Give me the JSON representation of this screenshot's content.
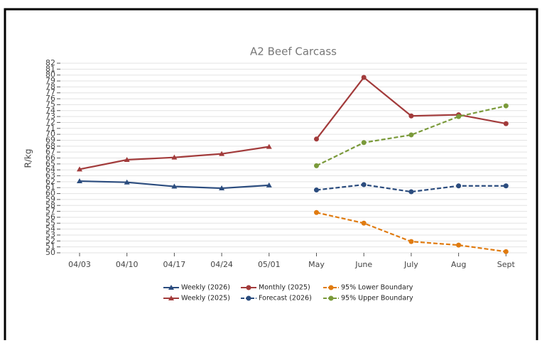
{
  "chart_data": {
    "type": "line",
    "title": "A2 Beef Carcass",
    "y_label": "R/kg",
    "categories": [
      "04/03",
      "04/10",
      "04/17",
      "04/24",
      "05/01",
      "May",
      "June",
      "July",
      "Aug",
      "Sept"
    ],
    "ylim": [
      50,
      82
    ],
    "yticks": [
      50,
      51,
      52,
      53,
      54,
      55,
      56,
      57,
      58,
      59,
      60,
      61,
      62,
      63,
      64,
      65,
      66,
      67,
      68,
      69,
      70,
      71,
      72,
      73,
      74,
      75,
      76,
      77,
      78,
      79,
      80,
      81,
      82
    ],
    "grid": true,
    "series": [
      {
        "name": "Weekly (2026)",
        "color": "#2b4c7e",
        "marker": "triangle",
        "dashed": false,
        "values": [
          62.1,
          61.9,
          61.2,
          60.9,
          61.4,
          null,
          null,
          null,
          null,
          null
        ]
      },
      {
        "name": "Weekly (2025)",
        "color": "#a23b3b",
        "marker": "triangle",
        "dashed": false,
        "values": [
          64.1,
          65.7,
          66.1,
          66.7,
          67.9,
          null,
          null,
          null,
          null,
          null
        ]
      },
      {
        "name": "Monthly (2025)",
        "color": "#a23b3b",
        "marker": "circle",
        "dashed": false,
        "values": [
          null,
          null,
          null,
          null,
          null,
          69.2,
          79.6,
          73.1,
          73.3,
          71.8
        ]
      },
      {
        "name": "Forecast (2026)",
        "color": "#2b4c7e",
        "marker": "circle",
        "dashed": true,
        "values": [
          null,
          null,
          null,
          null,
          null,
          60.6,
          61.5,
          60.3,
          61.3,
          61.3
        ]
      },
      {
        "name": "95% Lower Boundary",
        "color": "#e07b10",
        "marker": "circle",
        "dashed": true,
        "values": [
          null,
          null,
          null,
          null,
          null,
          56.8,
          55.0,
          51.9,
          51.3,
          50.2
        ]
      },
      {
        "name": "95% Upper Boundary",
        "color": "#7a9a3a",
        "marker": "circle",
        "dashed": true,
        "values": [
          null,
          null,
          null,
          null,
          null,
          64.7,
          68.6,
          69.9,
          73.0,
          74.8
        ]
      }
    ]
  }
}
